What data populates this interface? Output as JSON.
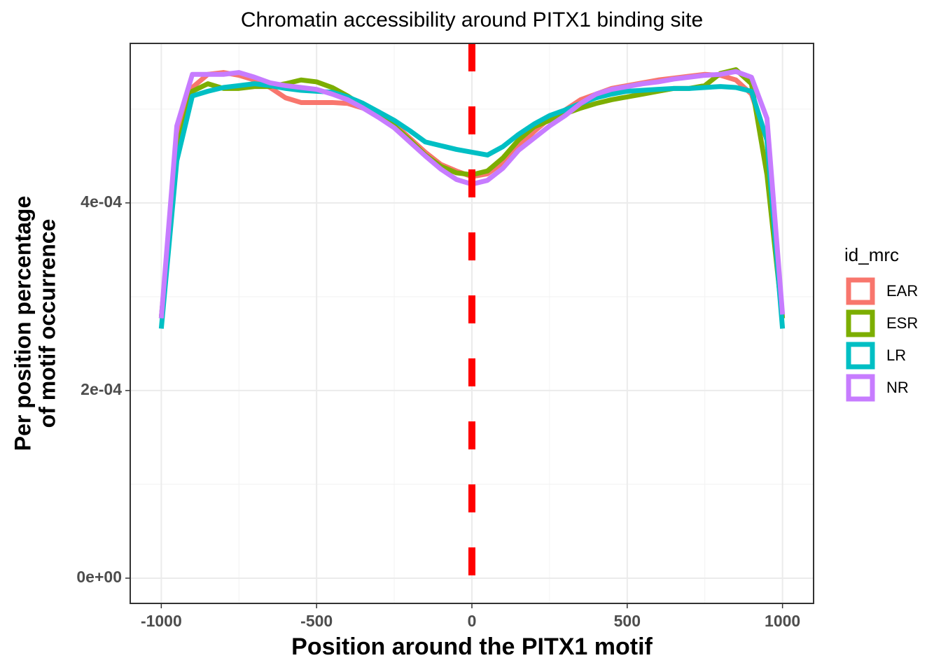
{
  "chart_data": {
    "type": "line",
    "title": "Chromatin accessibility around PITX1 binding site",
    "x_label": "Position around the PITX1  motif",
    "y_label": [
      "Per position percentage",
      "of motif occurrence"
    ],
    "legend_title": "id_mrc",
    "legend_position": "right",
    "grid": true,
    "xlim": [
      -1100,
      1100
    ],
    "ylim": [
      -2.69e-05,
      0.00057
    ],
    "xticks": [
      -1000,
      -500,
      0,
      500,
      1000
    ],
    "yticks": [
      {
        "value": 0,
        "label": "0e+00"
      },
      {
        "value": 0.0002,
        "label": "2e-04"
      },
      {
        "value": 0.0004,
        "label": "4e-04"
      }
    ],
    "xminor": [
      -750,
      -250,
      250,
      750
    ],
    "yminor": [
      0.0001,
      0.0003,
      0.0005
    ],
    "vline": {
      "x": 0,
      "color": "#ff0000"
    },
    "x": [
      -1000,
      -950,
      -900,
      -850,
      -800,
      -750,
      -700,
      -650,
      -600,
      -550,
      -500,
      -450,
      -400,
      -350,
      -300,
      -250,
      -200,
      -150,
      -100,
      -50,
      0,
      50,
      100,
      150,
      200,
      250,
      300,
      350,
      400,
      450,
      500,
      550,
      600,
      650,
      700,
      750,
      800,
      850,
      900,
      950,
      1000
    ],
    "series": [
      {
        "name": "EAR",
        "color": "#F8766D",
        "values": [
          0.000277,
          0.000467,
          0.000523,
          0.000537,
          0.000539,
          0.000536,
          0.000531,
          0.000523,
          0.000512,
          0.000507,
          0.000507,
          0.000507,
          0.000506,
          0.000501,
          0.000495,
          0.000484,
          0.000469,
          0.000454,
          0.000441,
          0.000434,
          0.000428,
          0.000431,
          0.000443,
          0.00046,
          0.000476,
          0.00049,
          0.000499,
          0.00051,
          0.000516,
          0.000522,
          0.000525,
          0.000528,
          0.000531,
          0.000533,
          0.000535,
          0.000537,
          0.000536,
          0.000531,
          0.000516,
          0.000467,
          0.000277
        ]
      },
      {
        "name": "ESR",
        "color": "#7CAE00",
        "values": [
          0.000277,
          0.000456,
          0.000519,
          0.000527,
          0.000522,
          0.000522,
          0.000524,
          0.000524,
          0.000527,
          0.000531,
          0.000529,
          0.000523,
          0.000514,
          0.000503,
          0.000493,
          0.000482,
          0.000467,
          0.000451,
          0.000439,
          0.000432,
          0.00043,
          0.000434,
          0.000448,
          0.000467,
          0.000481,
          0.000488,
          0.000495,
          0.000501,
          0.000506,
          0.00051,
          0.000513,
          0.000516,
          0.000519,
          0.000522,
          0.000522,
          0.000525,
          0.000538,
          0.000542,
          0.000527,
          0.00043,
          0.000277
        ]
      },
      {
        "name": "LR",
        "color": "#00BFC4",
        "values": [
          0.000266,
          0.000445,
          0.000514,
          0.000519,
          0.000523,
          0.000525,
          0.000527,
          0.000525,
          0.000522,
          0.00052,
          0.000519,
          0.000518,
          0.000513,
          0.000506,
          0.000497,
          0.000488,
          0.000477,
          0.000465,
          0.000461,
          0.000457,
          0.000454,
          0.000451,
          0.00046,
          0.000473,
          0.000484,
          0.000493,
          0.000499,
          0.000506,
          0.000512,
          0.000516,
          0.000519,
          0.00052,
          0.000521,
          0.000522,
          0.000522,
          0.000523,
          0.000524,
          0.000523,
          0.000519,
          0.000467,
          0.000266
        ]
      },
      {
        "name": "NR",
        "color": "#C77CFF",
        "values": [
          0.000277,
          0.000482,
          0.000537,
          0.000537,
          0.000537,
          0.000539,
          0.000534,
          0.000528,
          0.000525,
          0.000523,
          0.000521,
          0.000516,
          0.00051,
          0.000501,
          0.000491,
          0.00048,
          0.000465,
          0.00045,
          0.000436,
          0.000425,
          0.00042,
          0.000424,
          0.000437,
          0.000456,
          0.000469,
          0.000482,
          0.000493,
          0.000506,
          0.000516,
          0.000521,
          0.000524,
          0.000527,
          0.000529,
          0.000532,
          0.000534,
          0.000536,
          0.000537,
          0.00054,
          0.000534,
          0.00049,
          0.000281
        ]
      }
    ]
  }
}
